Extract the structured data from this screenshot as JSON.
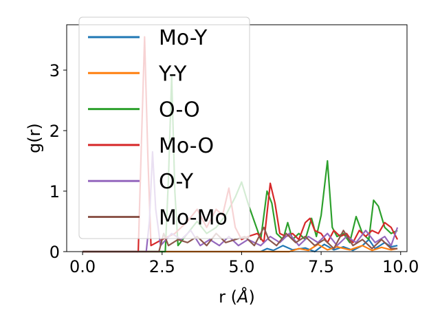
{
  "chart_data": {
    "type": "line",
    "xlabel": "r (",
    "xlabel_unit": "Å",
    "xlabel_close": ")",
    "ylabel": "g(r)",
    "xlim": [
      -0.5,
      10.2
    ],
    "ylim": [
      0,
      3.75
    ],
    "x_ticks": [
      0.0,
      2.5,
      5.0,
      7.5,
      10.0
    ],
    "x_tick_labels": [
      "0.0",
      "2.5",
      "5.0",
      "7.5",
      "10.0"
    ],
    "y_ticks": [
      0,
      1,
      2,
      3
    ],
    "y_tick_labels": [
      "0",
      "1",
      "2",
      "3"
    ],
    "grid": false,
    "legend_position": "upper-left",
    "series": [
      {
        "name": "Mo-Y",
        "color": "#1f77b4",
        "points": [
          [
            0,
            0
          ],
          [
            5.6,
            0
          ],
          [
            5.8,
            0.05
          ],
          [
            6.0,
            0.02
          ],
          [
            6.3,
            0.1
          ],
          [
            6.6,
            0.03
          ],
          [
            7.0,
            0.06
          ],
          [
            7.3,
            0.0
          ],
          [
            7.6,
            0.12
          ],
          [
            7.9,
            0.03
          ],
          [
            8.2,
            0.08
          ],
          [
            8.5,
            0.02
          ],
          [
            8.8,
            0.1
          ],
          [
            9.0,
            0.2
          ],
          [
            9.2,
            0.05
          ],
          [
            9.5,
            0.15
          ],
          [
            9.7,
            0.08
          ],
          [
            9.9,
            0.1
          ]
        ]
      },
      {
        "name": "Y-Y",
        "color": "#ff7f0e",
        "points": [
          [
            0,
            0
          ],
          [
            6.5,
            0
          ],
          [
            6.8,
            0.05
          ],
          [
            7.1,
            0.02
          ],
          [
            7.4,
            0.12
          ],
          [
            7.7,
            0.03
          ],
          [
            8.0,
            0.08
          ],
          [
            8.4,
            0.03
          ],
          [
            8.8,
            0.1
          ],
          [
            9.1,
            0.02
          ],
          [
            9.4,
            0.07
          ],
          [
            9.7,
            0.03
          ],
          [
            9.9,
            0.05
          ]
        ]
      },
      {
        "name": "O-O",
        "color": "#2ca02c",
        "points": [
          [
            0,
            0
          ],
          [
            2.6,
            0
          ],
          [
            2.7,
            1.2
          ],
          [
            2.8,
            2.9
          ],
          [
            2.9,
            1.0
          ],
          [
            3.0,
            0.1
          ],
          [
            3.3,
            0.3
          ],
          [
            3.6,
            0.5
          ],
          [
            3.9,
            0.3
          ],
          [
            4.2,
            0.4
          ],
          [
            4.5,
            0.6
          ],
          [
            4.8,
            0.9
          ],
          [
            5.0,
            1.15
          ],
          [
            5.2,
            0.8
          ],
          [
            5.4,
            0.5
          ],
          [
            5.6,
            0.2
          ],
          [
            5.8,
            1.0
          ],
          [
            5.95,
            0.8
          ],
          [
            6.1,
            0.3
          ],
          [
            6.3,
            0.2
          ],
          [
            6.45,
            0.48
          ],
          [
            6.6,
            0.2
          ],
          [
            6.8,
            0.3
          ],
          [
            7.0,
            0.2
          ],
          [
            7.2,
            0.55
          ],
          [
            7.35,
            0.25
          ],
          [
            7.5,
            0.6
          ],
          [
            7.7,
            1.5
          ],
          [
            7.85,
            0.4
          ],
          [
            8.0,
            0.25
          ],
          [
            8.2,
            0.3
          ],
          [
            8.4,
            0.15
          ],
          [
            8.6,
            0.58
          ],
          [
            8.8,
            0.3
          ],
          [
            9.0,
            0.2
          ],
          [
            9.15,
            0.85
          ],
          [
            9.3,
            0.75
          ],
          [
            9.5,
            0.4
          ],
          [
            9.7,
            0.3
          ],
          [
            9.9,
            0.35
          ]
        ]
      },
      {
        "name": "Mo-O",
        "color": "#d62728",
        "points": [
          [
            0,
            0
          ],
          [
            1.75,
            0
          ],
          [
            1.85,
            1.8
          ],
          [
            1.95,
            3.55
          ],
          [
            2.05,
            1.6
          ],
          [
            2.15,
            0.1
          ],
          [
            2.5,
            0.2
          ],
          [
            2.9,
            0.3
          ],
          [
            3.3,
            0.5
          ],
          [
            3.6,
            0.7
          ],
          [
            3.9,
            0.4
          ],
          [
            4.2,
            0.7
          ],
          [
            4.4,
            0.6
          ],
          [
            4.6,
            1.05
          ],
          [
            4.8,
            0.4
          ],
          [
            5.0,
            0.2
          ],
          [
            5.2,
            0.25
          ],
          [
            5.5,
            0.3
          ],
          [
            5.7,
            0.15
          ],
          [
            5.9,
            1.13
          ],
          [
            6.05,
            0.8
          ],
          [
            6.2,
            0.3
          ],
          [
            6.4,
            0.25
          ],
          [
            6.6,
            0.3
          ],
          [
            6.8,
            0.2
          ],
          [
            7.0,
            0.48
          ],
          [
            7.15,
            0.55
          ],
          [
            7.3,
            0.35
          ],
          [
            7.5,
            0.3
          ],
          [
            7.7,
            0.15
          ],
          [
            7.9,
            0.35
          ],
          [
            8.1,
            0.25
          ],
          [
            8.3,
            0.3
          ],
          [
            8.5,
            0.15
          ],
          [
            8.7,
            0.35
          ],
          [
            8.9,
            0.25
          ],
          [
            9.1,
            0.35
          ],
          [
            9.3,
            0.3
          ],
          [
            9.5,
            0.48
          ],
          [
            9.7,
            0.4
          ],
          [
            9.9,
            0.2
          ]
        ]
      },
      {
        "name": "O-Y",
        "color": "#9467bd",
        "points": [
          [
            0,
            0
          ],
          [
            2.0,
            0
          ],
          [
            2.1,
            0.5
          ],
          [
            2.2,
            1.65
          ],
          [
            2.3,
            0.7
          ],
          [
            2.45,
            0.1
          ],
          [
            2.8,
            0.3
          ],
          [
            3.1,
            0.2
          ],
          [
            3.4,
            0.35
          ],
          [
            3.7,
            0.1
          ],
          [
            4.0,
            0.2
          ],
          [
            4.3,
            0.1
          ],
          [
            4.6,
            0.25
          ],
          [
            4.9,
            0.1
          ],
          [
            5.2,
            0.2
          ],
          [
            5.6,
            0.1
          ],
          [
            5.9,
            0.25
          ],
          [
            6.2,
            0.15
          ],
          [
            6.5,
            0.3
          ],
          [
            6.8,
            0.1
          ],
          [
            7.1,
            0.25
          ],
          [
            7.4,
            0.15
          ],
          [
            7.7,
            0.3
          ],
          [
            8.0,
            0.1
          ],
          [
            8.3,
            0.25
          ],
          [
            8.6,
            0.15
          ],
          [
            8.9,
            0.35
          ],
          [
            9.2,
            0.15
          ],
          [
            9.5,
            0.25
          ],
          [
            9.7,
            0.1
          ],
          [
            9.9,
            0.4
          ]
        ]
      },
      {
        "name": "Mo-Mo",
        "color": "#8c564b",
        "points": [
          [
            0,
            0
          ],
          [
            2.4,
            0
          ],
          [
            2.55,
            0.3
          ],
          [
            2.7,
            0.1
          ],
          [
            3.0,
            0.2
          ],
          [
            3.3,
            0.15
          ],
          [
            3.6,
            0.25
          ],
          [
            3.9,
            0.1
          ],
          [
            4.2,
            0.3
          ],
          [
            4.5,
            0.15
          ],
          [
            4.8,
            0.2
          ],
          [
            5.1,
            0.25
          ],
          [
            5.4,
            0.1
          ],
          [
            5.7,
            0.4
          ],
          [
            5.85,
            0.2
          ],
          [
            6.1,
            0.1
          ],
          [
            6.4,
            0.3
          ],
          [
            6.7,
            0.15
          ],
          [
            7.0,
            0.25
          ],
          [
            7.3,
            0.1
          ],
          [
            7.6,
            0.2
          ],
          [
            7.9,
            0.05
          ],
          [
            8.2,
            0.35
          ],
          [
            8.5,
            0.1
          ],
          [
            8.8,
            0.2
          ],
          [
            9.1,
            0.05
          ],
          [
            9.4,
            0.2
          ],
          [
            9.7,
            0.05
          ],
          [
            9.9,
            0.05
          ]
        ]
      }
    ]
  }
}
